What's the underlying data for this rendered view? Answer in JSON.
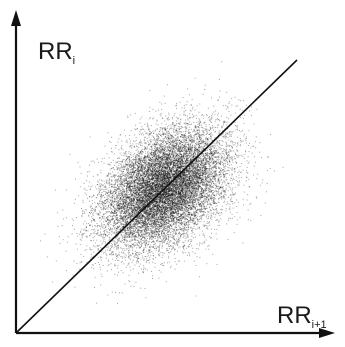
{
  "chart_data": {
    "type": "scatter",
    "title": "",
    "xlabel": {
      "main": "RR",
      "subscript": "i+1"
    },
    "ylabel": {
      "main": "RR",
      "subscript": "i"
    },
    "axes": {
      "ticks": false,
      "grid": false,
      "arrowheads": true
    },
    "identity_line": {
      "x": [
        0,
        1
      ],
      "y": [
        0,
        1
      ]
    },
    "cloud": {
      "center_x": 0.53,
      "center_y": 0.53,
      "spread_along_identity": 0.13,
      "spread_across_identity": 0.085,
      "point_count": 14000
    },
    "colors": {
      "points": "#111111",
      "axes": "#111111",
      "identity_line": "#111111",
      "background": "#ffffff"
    }
  }
}
